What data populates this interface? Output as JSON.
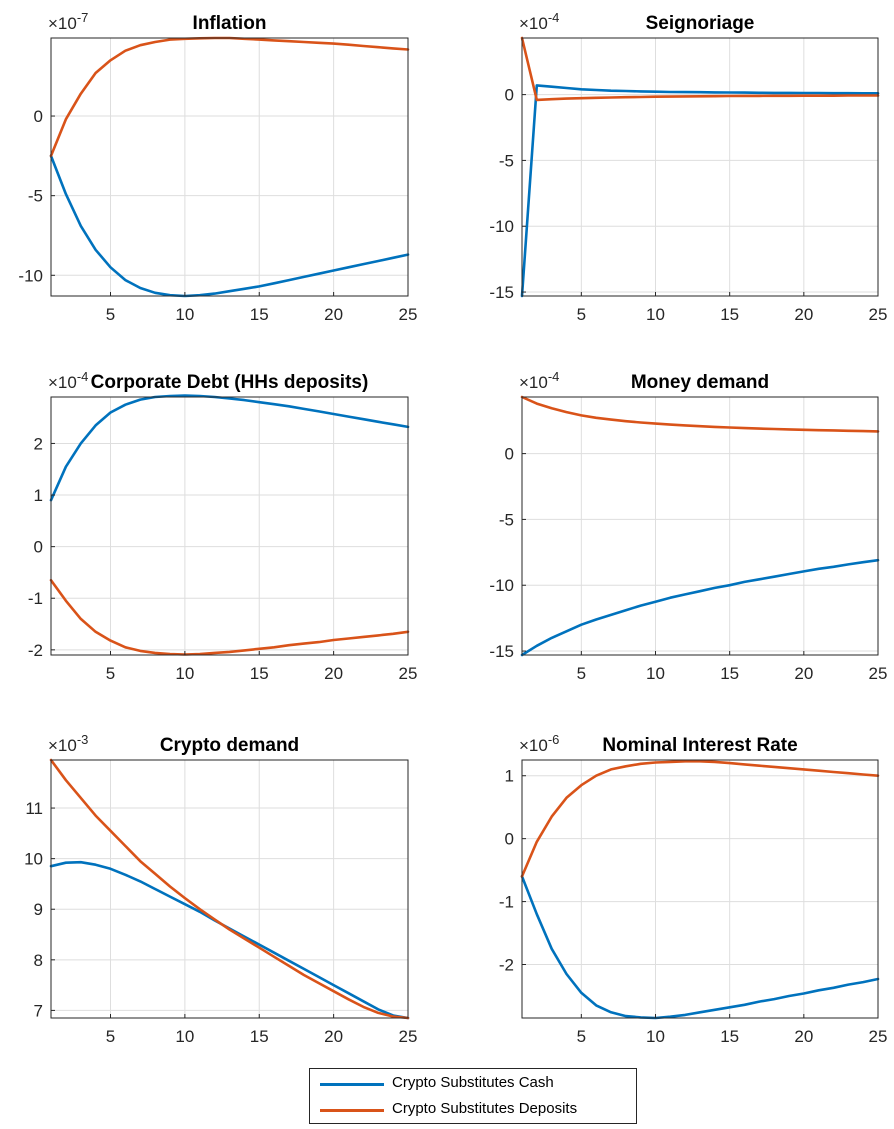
{
  "colors": {
    "cash": "#0072BD",
    "deposits": "#D95319"
  },
  "legend": [
    {
      "label": "Crypto Substitutes Cash",
      "color": "#0072BD"
    },
    {
      "label": "Crypto Substitutes Deposits",
      "color": "#D95319"
    }
  ],
  "chart_data": [
    {
      "type": "line",
      "title": "Inflation",
      "multiplier_base": "×10",
      "multiplier_exp": "-7",
      "xlim": [
        1,
        25
      ],
      "ylim": [
        -11.3,
        4.9
      ],
      "xticks": [
        5,
        10,
        15,
        20,
        25
      ],
      "yticks": [
        -10,
        -5,
        0
      ],
      "grid": true,
      "x": [
        1,
        2,
        3,
        4,
        5,
        6,
        7,
        8,
        9,
        10,
        11,
        12,
        13,
        14,
        15,
        16,
        17,
        18,
        19,
        20,
        21,
        22,
        23,
        24,
        25
      ],
      "series": [
        {
          "name": "Crypto Substitutes Cash",
          "values": [
            -2.5,
            -4.9,
            -6.9,
            -8.4,
            -9.5,
            -10.3,
            -10.8,
            -11.1,
            -11.25,
            -11.3,
            -11.25,
            -11.15,
            -11.0,
            -10.85,
            -10.7,
            -10.5,
            -10.3,
            -10.1,
            -9.9,
            -9.7,
            -9.5,
            -9.3,
            -9.1,
            -8.9,
            -8.7
          ]
        },
        {
          "name": "Crypto Substitutes Deposits",
          "values": [
            -2.5,
            -0.2,
            1.4,
            2.7,
            3.5,
            4.1,
            4.45,
            4.65,
            4.8,
            4.85,
            4.88,
            4.9,
            4.9,
            4.85,
            4.8,
            4.75,
            4.7,
            4.65,
            4.6,
            4.55,
            4.48,
            4.4,
            4.32,
            4.25,
            4.18
          ]
        }
      ]
    },
    {
      "type": "line",
      "title": "Seignoriage",
      "multiplier_base": "×10",
      "multiplier_exp": "-4",
      "xlim": [
        1,
        25
      ],
      "ylim": [
        -15.3,
        4.3
      ],
      "xticks": [
        5,
        10,
        15,
        20,
        25
      ],
      "yticks": [
        -15,
        -10,
        -5,
        0
      ],
      "grid": true,
      "x": [
        1,
        2,
        3,
        4,
        5,
        6,
        7,
        8,
        9,
        10,
        11,
        12,
        13,
        14,
        15,
        16,
        17,
        18,
        19,
        20,
        21,
        22,
        23,
        24,
        25
      ],
      "series": [
        {
          "name": "Crypto Substitutes Cash",
          "values": [
            -15.3,
            0.7,
            0.6,
            0.5,
            0.4,
            0.35,
            0.3,
            0.27,
            0.24,
            0.22,
            0.2,
            0.19,
            0.18,
            0.17,
            0.16,
            0.15,
            0.14,
            0.13,
            0.13,
            0.12,
            0.12,
            0.11,
            0.11,
            0.1,
            0.1
          ]
        },
        {
          "name": "Crypto Substitutes Deposits",
          "values": [
            4.3,
            -0.4,
            -0.35,
            -0.3,
            -0.27,
            -0.24,
            -0.22,
            -0.2,
            -0.18,
            -0.16,
            -0.15,
            -0.14,
            -0.13,
            -0.12,
            -0.11,
            -0.1,
            -0.1,
            -0.09,
            -0.09,
            -0.08,
            -0.08,
            -0.08,
            -0.07,
            -0.07,
            -0.07
          ]
        }
      ]
    },
    {
      "type": "line",
      "title": "Corporate Debt (HHs deposits)",
      "multiplier_base": "×10",
      "multiplier_exp": "-4",
      "xlim": [
        1,
        25
      ],
      "ylim": [
        -2.1,
        2.9
      ],
      "xticks": [
        5,
        10,
        15,
        20,
        25
      ],
      "yticks": [
        -2,
        -1,
        0,
        1,
        2
      ],
      "grid": true,
      "x": [
        1,
        2,
        3,
        4,
        5,
        6,
        7,
        8,
        9,
        10,
        11,
        12,
        13,
        14,
        15,
        16,
        17,
        18,
        19,
        20,
        21,
        22,
        23,
        24,
        25
      ],
      "series": [
        {
          "name": "Crypto Substitutes Cash",
          "values": [
            0.9,
            1.55,
            2.0,
            2.35,
            2.6,
            2.75,
            2.85,
            2.9,
            2.92,
            2.93,
            2.92,
            2.9,
            2.87,
            2.84,
            2.8,
            2.76,
            2.72,
            2.67,
            2.62,
            2.57,
            2.52,
            2.47,
            2.42,
            2.37,
            2.32
          ]
        },
        {
          "name": "Crypto Substitutes Deposits",
          "values": [
            -0.65,
            -1.05,
            -1.4,
            -1.65,
            -1.82,
            -1.95,
            -2.02,
            -2.06,
            -2.08,
            -2.09,
            -2.08,
            -2.06,
            -2.04,
            -2.01,
            -1.98,
            -1.95,
            -1.91,
            -1.88,
            -1.85,
            -1.81,
            -1.78,
            -1.75,
            -1.72,
            -1.69,
            -1.65
          ]
        }
      ]
    },
    {
      "type": "line",
      "title": "Money demand",
      "multiplier_base": "×10",
      "multiplier_exp": "-4",
      "xlim": [
        1,
        25
      ],
      "ylim": [
        -15.3,
        4.3
      ],
      "xticks": [
        5,
        10,
        15,
        20,
        25
      ],
      "yticks": [
        -15,
        -10,
        -5,
        0
      ],
      "grid": true,
      "x": [
        1,
        2,
        3,
        4,
        5,
        6,
        7,
        8,
        9,
        10,
        11,
        12,
        13,
        14,
        15,
        16,
        17,
        18,
        19,
        20,
        21,
        22,
        23,
        24,
        25
      ],
      "series": [
        {
          "name": "Crypto Substitutes Cash",
          "values": [
            -15.3,
            -14.6,
            -14.0,
            -13.5,
            -13.0,
            -12.6,
            -12.25,
            -11.9,
            -11.55,
            -11.25,
            -10.95,
            -10.7,
            -10.45,
            -10.2,
            -10.0,
            -9.75,
            -9.55,
            -9.35,
            -9.15,
            -8.95,
            -8.75,
            -8.6,
            -8.42,
            -8.25,
            -8.1
          ]
        },
        {
          "name": "Crypto Substitutes Deposits",
          "values": [
            4.3,
            3.8,
            3.45,
            3.15,
            2.9,
            2.72,
            2.58,
            2.46,
            2.36,
            2.28,
            2.2,
            2.14,
            2.08,
            2.03,
            1.98,
            1.94,
            1.9,
            1.87,
            1.84,
            1.81,
            1.78,
            1.76,
            1.73,
            1.71,
            1.69
          ]
        }
      ]
    },
    {
      "type": "line",
      "title": "Crypto demand",
      "multiplier_base": "×10",
      "multiplier_exp": "-3",
      "xlim": [
        1,
        25
      ],
      "ylim": [
        6.85,
        11.95
      ],
      "xticks": [
        5,
        10,
        15,
        20,
        25
      ],
      "yticks": [
        7,
        8,
        9,
        10,
        11
      ],
      "grid": true,
      "x": [
        1,
        2,
        3,
        4,
        5,
        6,
        7,
        8,
        9,
        10,
        11,
        12,
        13,
        14,
        15,
        16,
        17,
        18,
        19,
        20,
        21,
        22,
        23,
        24,
        25
      ],
      "series": [
        {
          "name": "Crypto Substitutes Cash",
          "values": [
            9.85,
            9.92,
            9.93,
            9.88,
            9.8,
            9.68,
            9.55,
            9.4,
            9.25,
            9.1,
            8.95,
            8.78,
            8.62,
            8.46,
            8.3,
            8.14,
            7.98,
            7.82,
            7.66,
            7.5,
            7.34,
            7.18,
            7.02,
            6.9,
            6.85
          ]
        },
        {
          "name": "Crypto Substitutes Deposits",
          "values": [
            11.95,
            11.55,
            11.2,
            10.85,
            10.55,
            10.25,
            9.95,
            9.7,
            9.45,
            9.22,
            9.0,
            8.8,
            8.6,
            8.42,
            8.24,
            8.06,
            7.88,
            7.7,
            7.54,
            7.38,
            7.22,
            7.07,
            6.95,
            6.88,
            6.85
          ]
        }
      ]
    },
    {
      "type": "line",
      "title": "Nominal Interest Rate",
      "multiplier_base": "×10",
      "multiplier_exp": "-6",
      "xlim": [
        1,
        25
      ],
      "ylim": [
        -2.85,
        1.25
      ],
      "xticks": [
        5,
        10,
        15,
        20,
        25
      ],
      "yticks": [
        -2,
        -1,
        0,
        1
      ],
      "grid": true,
      "x": [
        1,
        2,
        3,
        4,
        5,
        6,
        7,
        8,
        9,
        10,
        11,
        12,
        13,
        14,
        15,
        16,
        17,
        18,
        19,
        20,
        21,
        22,
        23,
        24,
        25
      ],
      "series": [
        {
          "name": "Crypto Substitutes Cash",
          "values": [
            -0.6,
            -1.2,
            -1.75,
            -2.15,
            -2.45,
            -2.65,
            -2.76,
            -2.82,
            -2.84,
            -2.85,
            -2.83,
            -2.8,
            -2.76,
            -2.72,
            -2.68,
            -2.64,
            -2.59,
            -2.55,
            -2.5,
            -2.46,
            -2.41,
            -2.37,
            -2.32,
            -2.28,
            -2.23
          ]
        },
        {
          "name": "Crypto Substitutes Deposits",
          "values": [
            -0.6,
            -0.05,
            0.35,
            0.65,
            0.85,
            1.0,
            1.1,
            1.15,
            1.19,
            1.21,
            1.22,
            1.23,
            1.23,
            1.22,
            1.2,
            1.18,
            1.16,
            1.14,
            1.12,
            1.1,
            1.08,
            1.06,
            1.04,
            1.02,
            1.0
          ]
        }
      ]
    }
  ]
}
